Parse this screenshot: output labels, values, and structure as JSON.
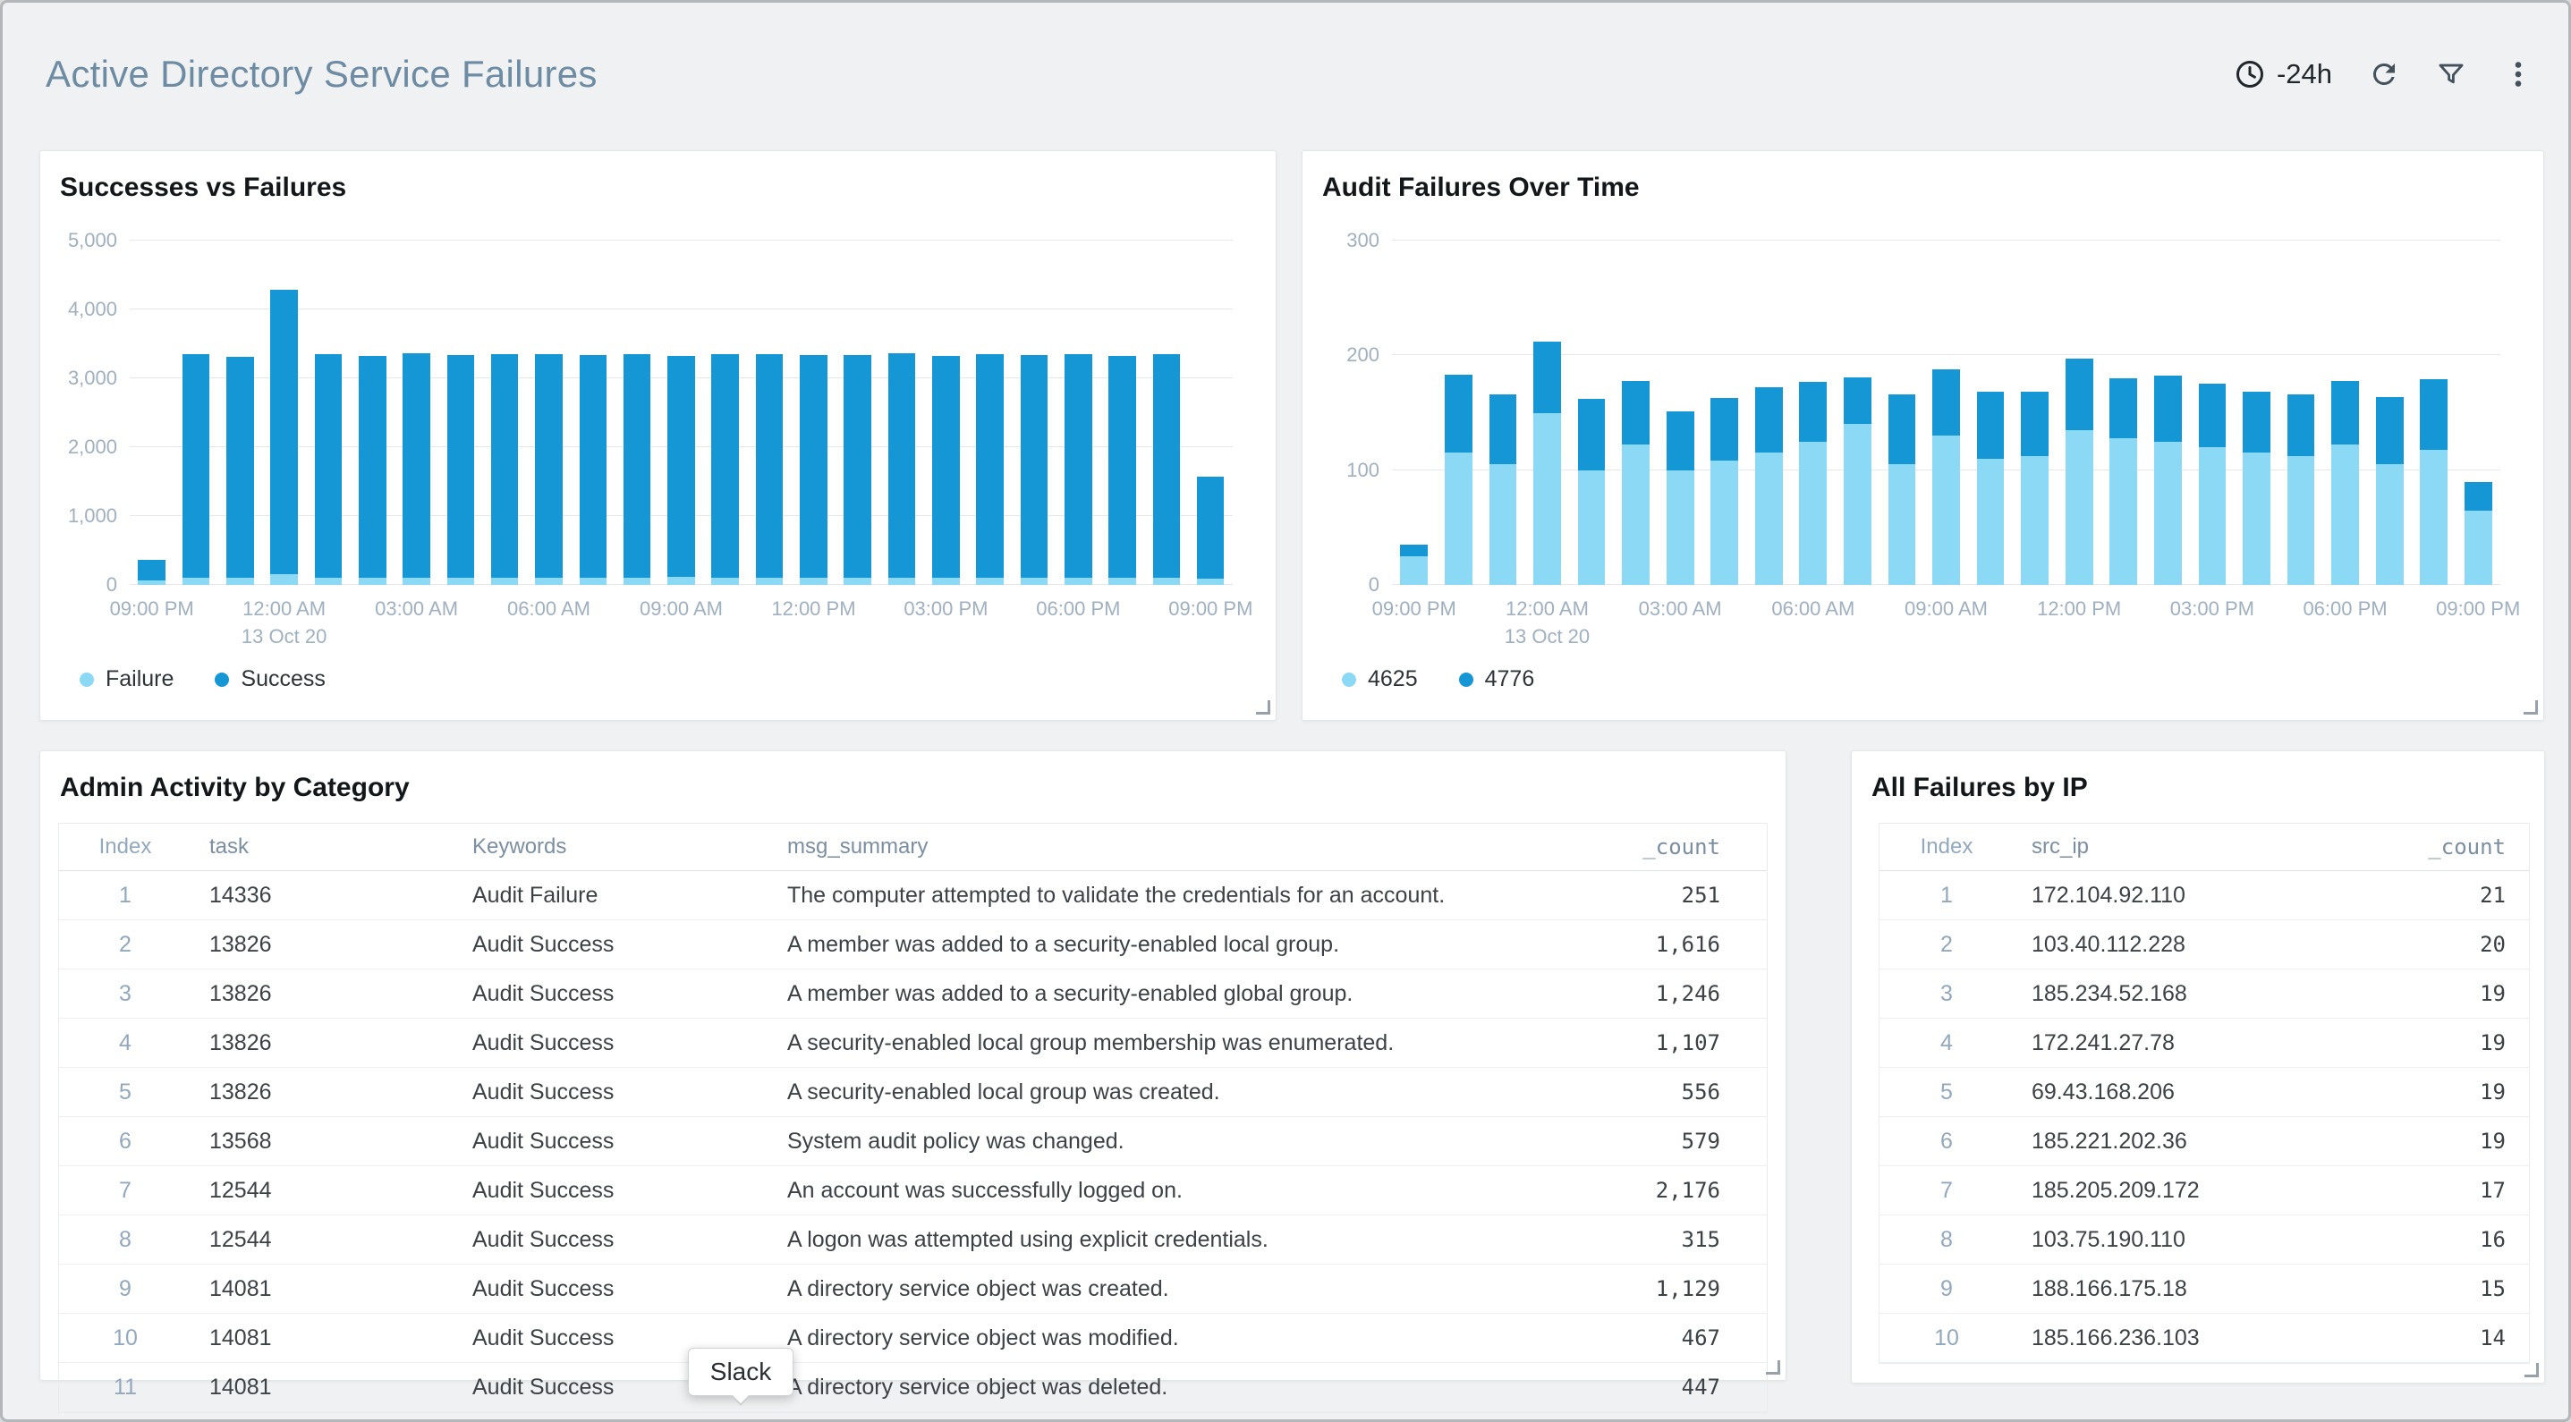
{
  "header": {
    "title": "Active Directory Service Failures",
    "time_range": "-24h"
  },
  "tooltip": {
    "label": "Slack"
  },
  "colors": {
    "accent_light": "#8bd9f4",
    "accent_dark": "#1597d5"
  },
  "panels": {
    "admin_activity": {
      "title": "Admin Activity by Category",
      "columns": [
        {
          "key": "index",
          "label": "Index",
          "align": "center"
        },
        {
          "key": "task",
          "label": "task",
          "align": "left"
        },
        {
          "key": "keywords",
          "label": "Keywords",
          "align": "left"
        },
        {
          "key": "msg_summary",
          "label": "msg_summary",
          "align": "left"
        },
        {
          "key": "count",
          "label": "_count",
          "align": "right"
        }
      ],
      "rows": [
        {
          "index": 1,
          "task": "14336",
          "keywords": "Audit Failure",
          "msg_summary": "The computer attempted to validate the credentials for an account.",
          "count": "251"
        },
        {
          "index": 2,
          "task": "13826",
          "keywords": "Audit Success",
          "msg_summary": "A member was added to a security-enabled local group.",
          "count": "1,616"
        },
        {
          "index": 3,
          "task": "13826",
          "keywords": "Audit Success",
          "msg_summary": "A member was added to a security-enabled global group.",
          "count": "1,246"
        },
        {
          "index": 4,
          "task": "13826",
          "keywords": "Audit Success",
          "msg_summary": "A security-enabled local group membership was enumerated.",
          "count": "1,107"
        },
        {
          "index": 5,
          "task": "13826",
          "keywords": "Audit Success",
          "msg_summary": "A security-enabled local group was created.",
          "count": "556"
        },
        {
          "index": 6,
          "task": "13568",
          "keywords": "Audit Success",
          "msg_summary": "System audit policy was changed.",
          "count": "579"
        },
        {
          "index": 7,
          "task": "12544",
          "keywords": "Audit Success",
          "msg_summary": "An account was successfully logged on.",
          "count": "2,176"
        },
        {
          "index": 8,
          "task": "12544",
          "keywords": "Audit Success",
          "msg_summary": "A logon was attempted using explicit credentials.",
          "count": "315"
        },
        {
          "index": 9,
          "task": "14081",
          "keywords": "Audit Success",
          "msg_summary": "A directory service object was created.",
          "count": "1,129"
        },
        {
          "index": 10,
          "task": "14081",
          "keywords": "Audit Success",
          "msg_summary": "A directory service object was modified.",
          "count": "467"
        },
        {
          "index": 11,
          "task": "14081",
          "keywords": "Audit Success",
          "msg_summary": "A directory service object was deleted.",
          "count": "447"
        }
      ]
    },
    "failures_by_ip": {
      "title": "All Failures by IP",
      "columns": [
        {
          "key": "index",
          "label": "Index",
          "align": "center"
        },
        {
          "key": "src_ip",
          "label": "src_ip",
          "align": "left"
        },
        {
          "key": "count",
          "label": "_count",
          "align": "right"
        }
      ],
      "rows": [
        {
          "index": 1,
          "src_ip": "172.104.92.110",
          "count": "21"
        },
        {
          "index": 2,
          "src_ip": "103.40.112.228",
          "count": "20"
        },
        {
          "index": 3,
          "src_ip": "185.234.52.168",
          "count": "19"
        },
        {
          "index": 4,
          "src_ip": "172.241.27.78",
          "count": "19"
        },
        {
          "index": 5,
          "src_ip": "69.43.168.206",
          "count": "19"
        },
        {
          "index": 6,
          "src_ip": "185.221.202.36",
          "count": "19"
        },
        {
          "index": 7,
          "src_ip": "185.205.209.172",
          "count": "17"
        },
        {
          "index": 8,
          "src_ip": "103.75.190.110",
          "count": "16"
        },
        {
          "index": 9,
          "src_ip": "188.166.175.18",
          "count": "15"
        },
        {
          "index": 10,
          "src_ip": "185.166.236.103",
          "count": "14"
        }
      ]
    }
  },
  "chart_data": [
    {
      "type": "bar",
      "stacked": true,
      "title": "Successes vs Failures",
      "xlabel": "",
      "ylabel": "",
      "ylim": [
        0,
        5000
      ],
      "yticks": [
        0,
        1000,
        2000,
        3000,
        4000,
        5000
      ],
      "grid": true,
      "legend_position": "bottom-left",
      "x": [
        "09:00 PM",
        "10:00 PM",
        "11:00 PM",
        "12:00 AM",
        "01:00 AM",
        "02:00 AM",
        "03:00 AM",
        "04:00 AM",
        "05:00 AM",
        "06:00 AM",
        "07:00 AM",
        "08:00 AM",
        "09:00 AM",
        "10:00 AM",
        "11:00 AM",
        "12:00 PM",
        "01:00 PM",
        "02:00 PM",
        "03:00 PM",
        "04:00 PM",
        "05:00 PM",
        "06:00 PM",
        "07:00 PM",
        "08:00 PM",
        "09:00 PM"
      ],
      "xticks": [
        {
          "index": 0,
          "label": "09:00 PM"
        },
        {
          "index": 3,
          "label": "12:00 AM",
          "sub": "13 Oct 20"
        },
        {
          "index": 6,
          "label": "03:00 AM"
        },
        {
          "index": 9,
          "label": "06:00 AM"
        },
        {
          "index": 12,
          "label": "09:00 AM"
        },
        {
          "index": 15,
          "label": "12:00 PM"
        },
        {
          "index": 18,
          "label": "03:00 PM"
        },
        {
          "index": 21,
          "label": "06:00 PM"
        },
        {
          "index": 24,
          "label": "09:00 PM"
        }
      ],
      "series": [
        {
          "name": "Failure",
          "color": "#8bd9f4",
          "values": [
            60,
            110,
            100,
            150,
            110,
            105,
            110,
            100,
            110,
            105,
            110,
            100,
            115,
            110,
            100,
            110,
            105,
            110,
            100,
            110,
            105,
            110,
            100,
            110,
            90
          ]
        },
        {
          "name": "Success",
          "color": "#1597d5",
          "values": [
            300,
            3240,
            3210,
            4130,
            3235,
            3225,
            3250,
            3240,
            3245,
            3240,
            3225,
            3250,
            3215,
            3245,
            3245,
            3225,
            3235,
            3250,
            3230,
            3235,
            3230,
            3240,
            3230,
            3235,
            1480
          ]
        }
      ]
    },
    {
      "type": "bar",
      "stacked": true,
      "title": "Audit Failures Over Time",
      "xlabel": "",
      "ylabel": "",
      "ylim": [
        0,
        300
      ],
      "yticks": [
        0,
        100,
        200,
        300
      ],
      "grid": true,
      "legend_position": "bottom-left",
      "x": [
        "09:00 PM",
        "10:00 PM",
        "11:00 PM",
        "12:00 AM",
        "01:00 AM",
        "02:00 AM",
        "03:00 AM",
        "04:00 AM",
        "05:00 AM",
        "06:00 AM",
        "07:00 AM",
        "08:00 AM",
        "09:00 AM",
        "10:00 AM",
        "11:00 AM",
        "12:00 PM",
        "01:00 PM",
        "02:00 PM",
        "03:00 PM",
        "04:00 PM",
        "05:00 PM",
        "06:00 PM",
        "07:00 PM",
        "08:00 PM",
        "09:00 PM"
      ],
      "xticks": [
        {
          "index": 0,
          "label": "09:00 PM"
        },
        {
          "index": 3,
          "label": "12:00 AM",
          "sub": "13 Oct 20"
        },
        {
          "index": 6,
          "label": "03:00 AM"
        },
        {
          "index": 9,
          "label": "06:00 AM"
        },
        {
          "index": 12,
          "label": "09:00 AM"
        },
        {
          "index": 15,
          "label": "12:00 PM"
        },
        {
          "index": 18,
          "label": "03:00 PM"
        },
        {
          "index": 21,
          "label": "06:00 PM"
        },
        {
          "index": 24,
          "label": "09:00 PM"
        }
      ],
      "series": [
        {
          "name": "4625",
          "color": "#8bd9f4",
          "values": [
            25,
            115,
            105,
            150,
            100,
            122,
            100,
            108,
            115,
            125,
            140,
            105,
            130,
            110,
            112,
            135,
            128,
            125,
            120,
            115,
            112,
            122,
            105,
            118,
            65
          ]
        },
        {
          "name": "4776",
          "color": "#1597d5",
          "values": [
            10,
            68,
            61,
            62,
            62,
            56,
            51,
            55,
            57,
            52,
            41,
            61,
            58,
            58,
            56,
            62,
            52,
            57,
            55,
            53,
            54,
            56,
            59,
            61,
            25
          ]
        }
      ]
    }
  ]
}
